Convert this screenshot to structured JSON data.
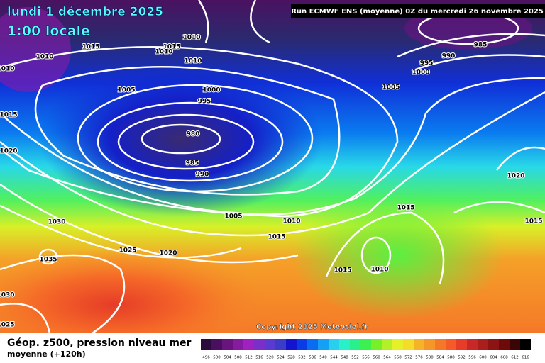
{
  "header": {
    "date": "lundi 1 décembre 2025",
    "time": "1:00 locale",
    "run": "Run ECMWF ENS (moyenne) 0Z du mercredi 26 novembre 2025"
  },
  "isobar_labels": [
    1010,
    1015,
    1015,
    1010,
    1010,
    1010,
    1010,
    1005,
    1000,
    995,
    980,
    985,
    990,
    1015,
    1020,
    1030,
    1035,
    1025,
    1020,
    1005,
    1010,
    1015,
    1015,
    1015,
    1010,
    1030,
    1025,
    985,
    990,
    995,
    1000,
    1005,
    1020,
    1015
  ],
  "copyright": "Copyright 2025 Meteociel.fr",
  "footer": {
    "title": "Géop. z500, pression niveau mer",
    "subtitle": "moyenne  (+120h)"
  },
  "legend": {
    "values": [
      496,
      500,
      504,
      508,
      512,
      516,
      520,
      524,
      528,
      532,
      536,
      540,
      544,
      548,
      552,
      556,
      560,
      564,
      568,
      572,
      576,
      580,
      584,
      588,
      592,
      596,
      600,
      604,
      608,
      612,
      616
    ],
    "colors": [
      "#2b0a3d",
      "#4a0f5e",
      "#6a1480",
      "#861aa0",
      "#a020c0",
      "#7a30c8",
      "#5a3ad0",
      "#3c3cc8",
      "#1414d0",
      "#0a3ce6",
      "#0a6cf0",
      "#14a0f5",
      "#28d0f0",
      "#28f0c8",
      "#28f08c",
      "#3cf050",
      "#78f028",
      "#b4f028",
      "#e6f028",
      "#f5dc28",
      "#f5b428",
      "#f59628",
      "#f57828",
      "#f55a28",
      "#e63c28",
      "#c82828",
      "#aa1e1e",
      "#8c1414",
      "#6e0a0a",
      "#3c0505",
      "#000000"
    ]
  }
}
